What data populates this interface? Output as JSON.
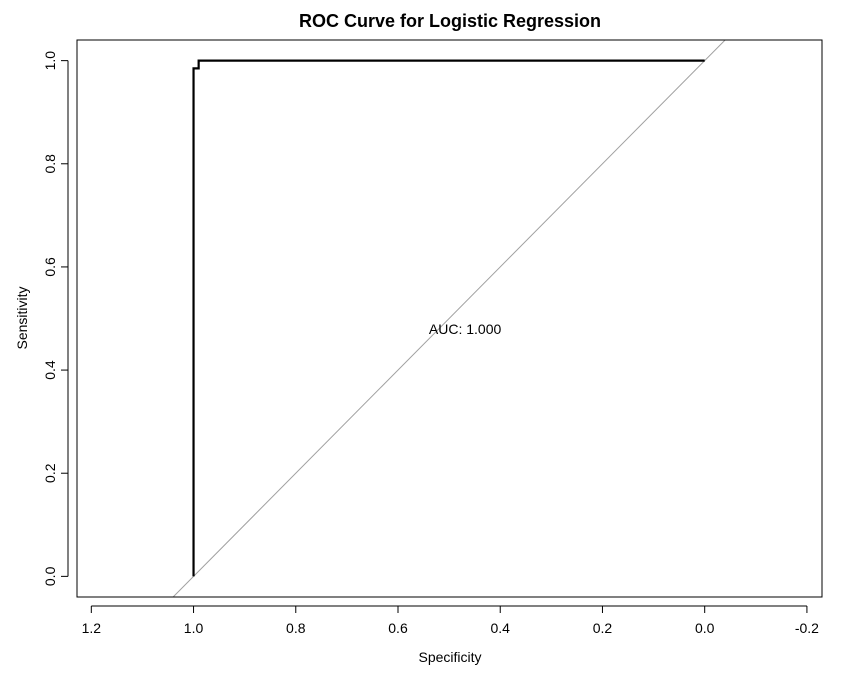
{
  "chart_data": {
    "type": "line",
    "title": "ROC Curve for Logistic Regression",
    "xlabel": "Specificity",
    "ylabel": "Sensitivity",
    "x_reversed": true,
    "xlim": [
      1.2,
      -0.2
    ],
    "ylim": [
      0.0,
      1.0
    ],
    "x_ticks": [
      1.2,
      1.0,
      0.8,
      0.6,
      0.4,
      0.2,
      0.0,
      -0.2
    ],
    "x_tick_labels": [
      "1.2",
      "1.0",
      "0.8",
      "0.6",
      "0.4",
      "0.2",
      "0.0",
      "-0.2"
    ],
    "y_ticks": [
      0.0,
      0.2,
      0.4,
      0.6,
      0.8,
      1.0
    ],
    "y_tick_labels": [
      "0.0",
      "0.2",
      "0.4",
      "0.6",
      "0.8",
      "1.0"
    ],
    "grid": false,
    "series": [
      {
        "color": "#000000",
        "x": [
          1.0,
          1.0,
          0.99,
          0.99,
          0.0
        ],
        "y": [
          0.0,
          0.985,
          0.985,
          1.0,
          1.0
        ]
      }
    ],
    "reference_line": {
      "type": "diagonal",
      "color": "#a0a0a0",
      "from": [
        1.0,
        0.0
      ],
      "to": [
        0.0,
        1.0
      ]
    },
    "annotation": {
      "text": "AUC: 1.000",
      "x": 0.5,
      "y": 0.48
    }
  }
}
